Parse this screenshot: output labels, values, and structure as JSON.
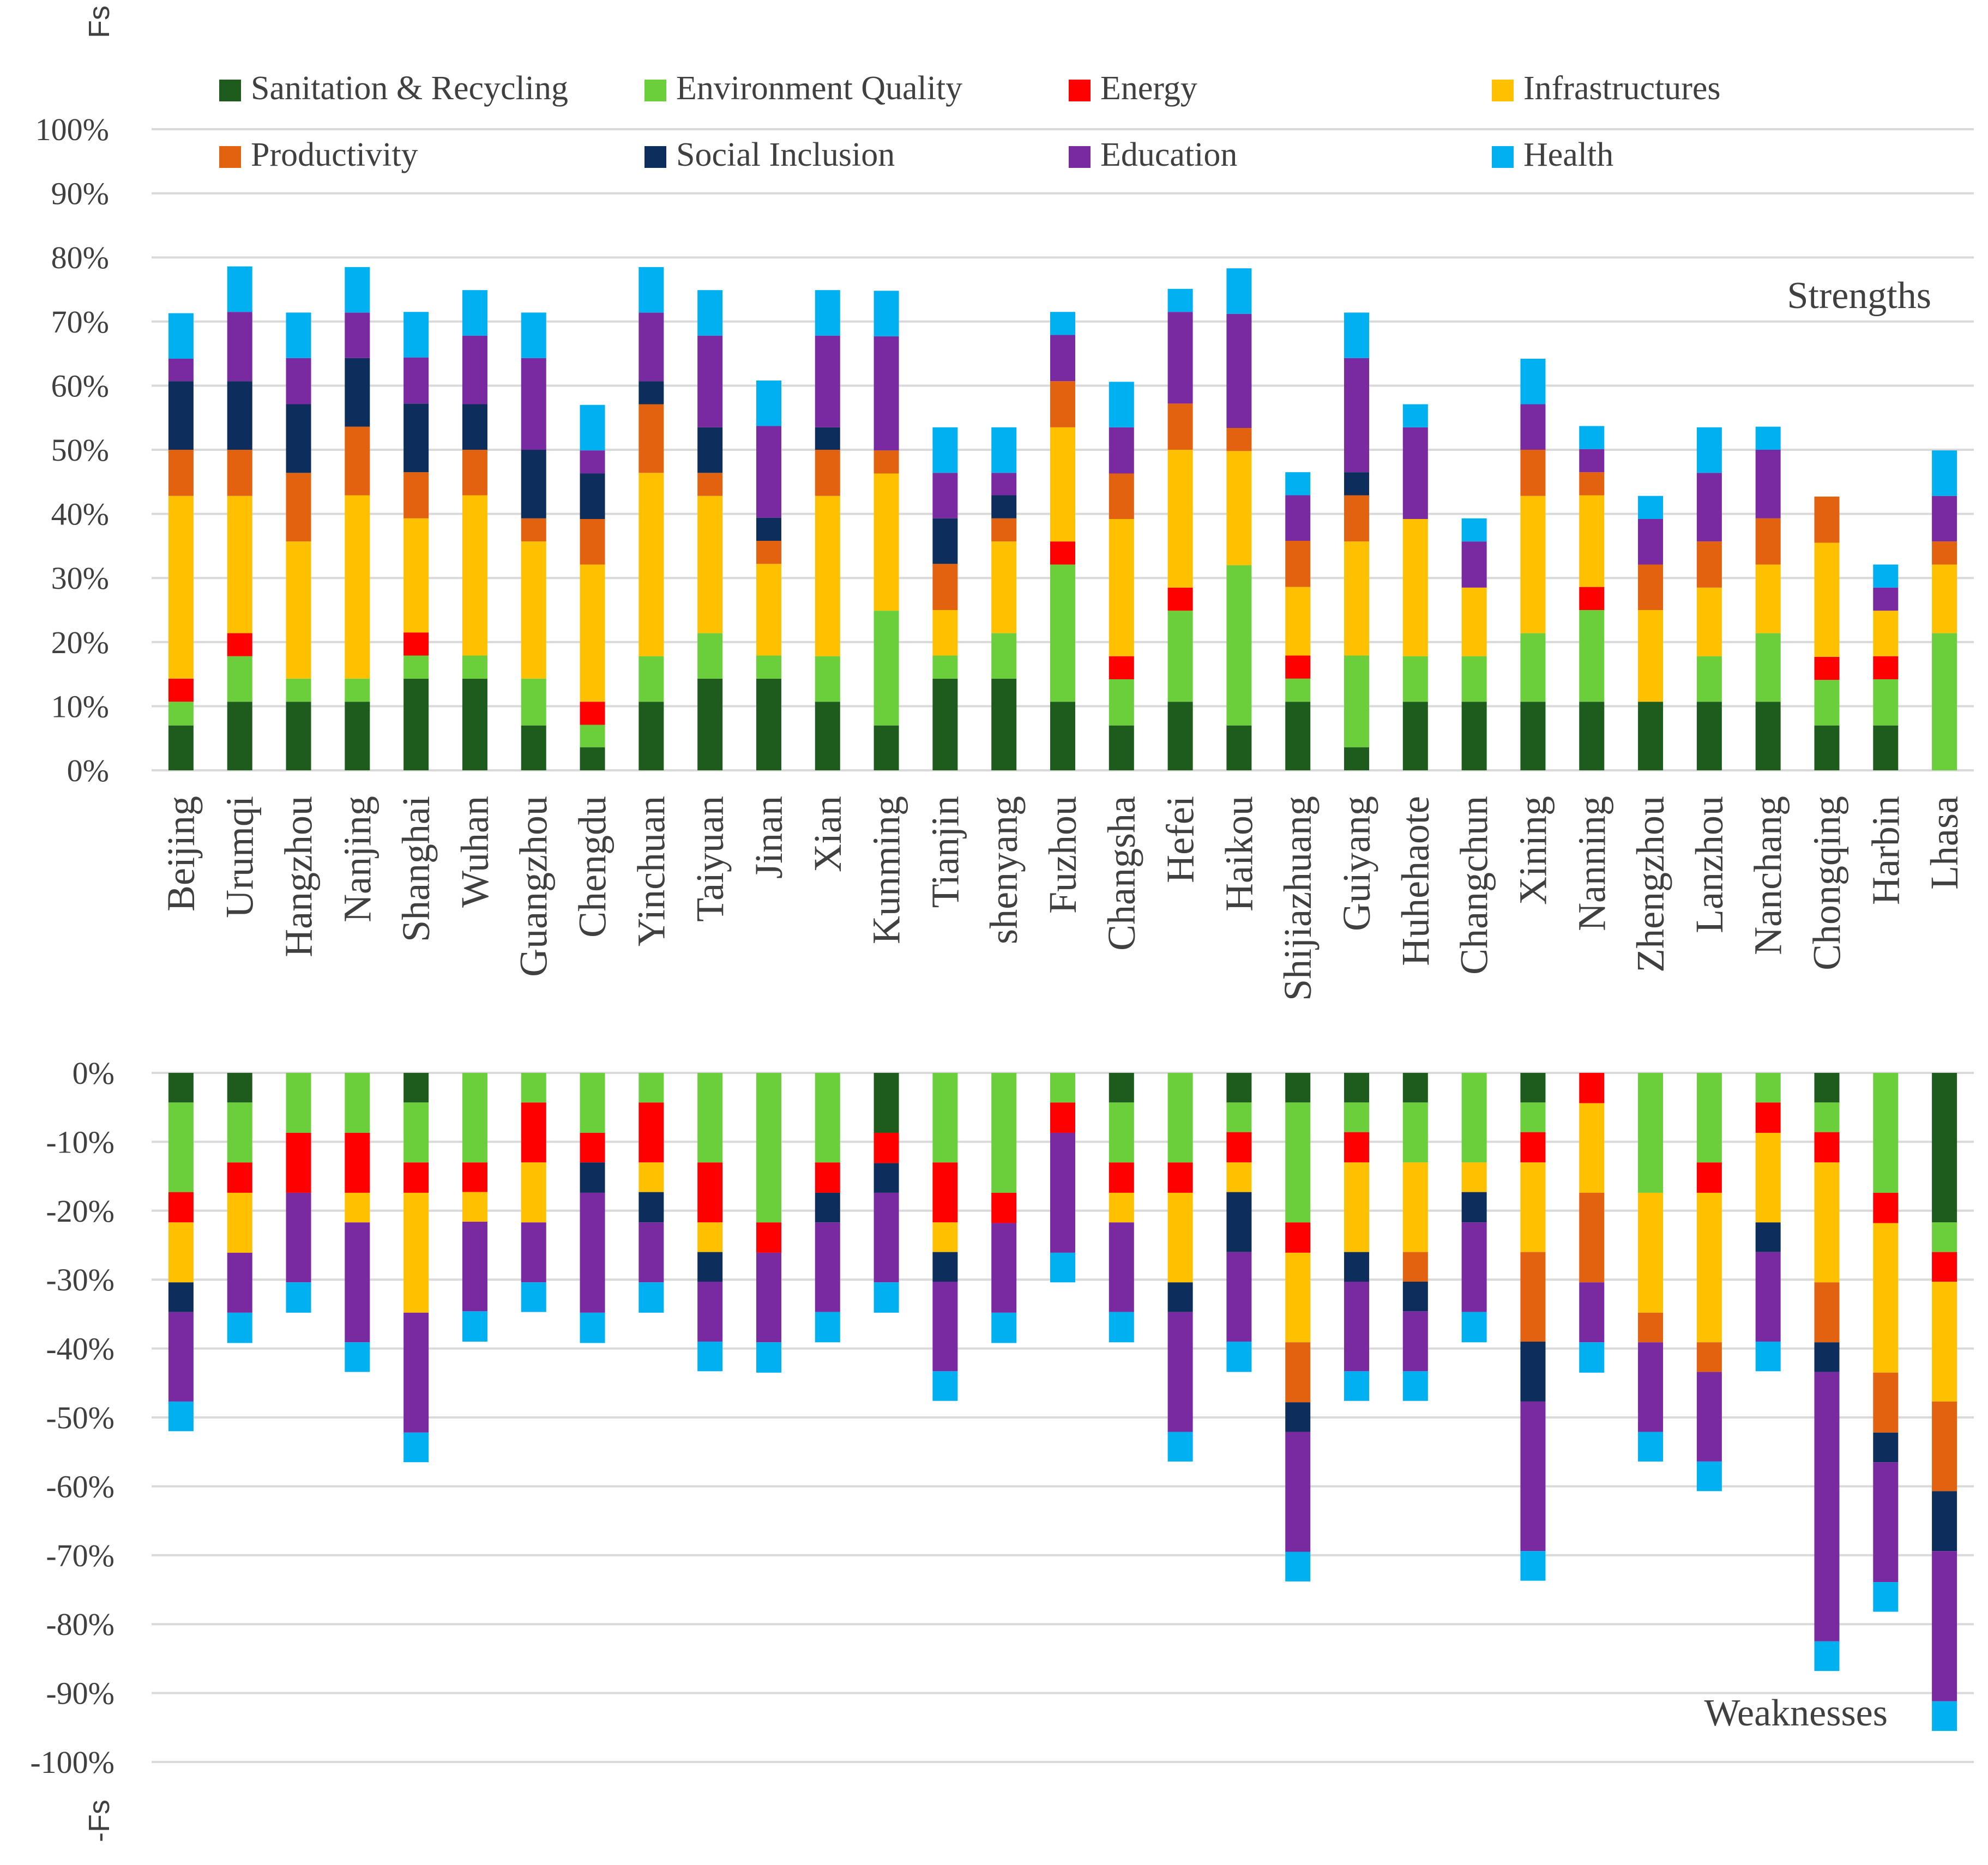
{
  "chart_data": [
    {
      "type": "bar",
      "stacked": true,
      "panel": "top",
      "ylabel": "Fs",
      "ylim": [
        0,
        100
      ],
      "ytick_labels": [
        "0%",
        "10%",
        "20%",
        "30%",
        "40%",
        "50%",
        "60%",
        "70%",
        "80%",
        "90%",
        "100%"
      ],
      "annotation": "Strengths",
      "categories": [
        "Beijing",
        "Urumqi",
        "Hangzhou",
        "Nanjing",
        "Shanghai",
        "Wuhan",
        "Guangzhou",
        "Chengdu",
        "Yinchuan",
        "Taiyuan",
        "Jinan",
        "Xian",
        "Kunming",
        "Tianjin",
        "shenyang",
        "Fuzhou",
        "Changsha",
        "Hefei",
        "Haikou",
        "Shijiazhuang",
        "Guiyang",
        "Huhehaote",
        "Changchun",
        "Xining",
        "Nanning",
        "Zhengzhou",
        "Lanzhou",
        "Nanchang",
        "Chongqing",
        "Harbin",
        "Lhasa"
      ],
      "series": [
        {
          "name": "Sanitation & Recycling",
          "color": "#1e5c1e",
          "values": [
            7,
            10.7,
            10.7,
            10.7,
            14.3,
            14.3,
            7,
            3.6,
            10.7,
            14.3,
            14.3,
            10.7,
            7,
            14.3,
            14.3,
            10.7,
            7,
            10.7,
            7,
            10.7,
            3.6,
            10.7,
            10.7,
            10.7,
            10.7,
            10.7,
            10.7,
            10.7,
            7,
            7,
            0
          ]
        },
        {
          "name": "Environment Quality",
          "color": "#6bcf3c",
          "values": [
            3.7,
            7.1,
            3.6,
            3.6,
            3.6,
            3.6,
            7.3,
            3.5,
            7.1,
            7.1,
            3.6,
            7.1,
            17.9,
            3.6,
            7.1,
            21.4,
            7.2,
            14.2,
            25,
            3.6,
            14.3,
            7.1,
            7.1,
            10.7,
            14.3,
            0,
            7.1,
            10.7,
            7.1,
            7.2,
            21.4
          ]
        },
        {
          "name": "Energy",
          "color": "#ff0000",
          "values": [
            3.6,
            3.6,
            0,
            0,
            3.6,
            0,
            0,
            3.6,
            0,
            0,
            0,
            0,
            0,
            0,
            0,
            3.6,
            3.6,
            3.6,
            0,
            3.6,
            0,
            0,
            0,
            0,
            3.6,
            0,
            0,
            0,
            3.6,
            3.6,
            0
          ]
        },
        {
          "name": "Infrastructures",
          "color": "#ffc000",
          "values": [
            28.5,
            21.4,
            21.4,
            28.6,
            17.8,
            25,
            21.4,
            21.4,
            28.6,
            21.4,
            14.3,
            25,
            21.4,
            7.1,
            14.3,
            17.8,
            21.4,
            21.5,
            17.8,
            10.7,
            17.8,
            21.4,
            10.7,
            21.4,
            14.3,
            14.3,
            10.7,
            10.7,
            17.8,
            7.1,
            10.7
          ]
        },
        {
          "name": "Productivity",
          "color": "#e2620f",
          "values": [
            7.2,
            7.2,
            10.7,
            10.7,
            7.2,
            7.1,
            3.6,
            7.1,
            10.7,
            3.6,
            3.6,
            7.2,
            3.6,
            7.2,
            3.6,
            7.2,
            7.1,
            7.2,
            3.6,
            7.2,
            7.2,
            0,
            0,
            7.2,
            3.6,
            7.1,
            7.2,
            7.2,
            7.2,
            0,
            3.6
          ]
        },
        {
          "name": "Social Inclusion",
          "color": "#0d2e5c",
          "values": [
            10.7,
            10.7,
            10.7,
            10.7,
            10.7,
            7.1,
            10.7,
            7.1,
            3.6,
            7.1,
            3.6,
            3.5,
            0,
            7.1,
            3.6,
            0,
            0,
            0,
            0,
            0,
            3.6,
            0,
            0,
            0,
            0,
            0,
            0,
            0,
            0,
            0,
            0
          ]
        },
        {
          "name": "Education",
          "color": "#7a2aa0",
          "values": [
            3.5,
            10.8,
            7.2,
            7.1,
            7.2,
            10.7,
            14.3,
            3.6,
            10.7,
            14.3,
            14.3,
            14.3,
            17.8,
            7.1,
            3.5,
            7.2,
            7.2,
            14.3,
            17.8,
            7.1,
            17.8,
            14.3,
            7.2,
            7.1,
            3.6,
            7.1,
            10.7,
            10.7,
            0,
            3.6,
            7.1
          ]
        },
        {
          "name": "Health",
          "color": "#00b0f0",
          "values": [
            7.1,
            7.1,
            7.1,
            7.1,
            7.1,
            7.1,
            7.1,
            7.1,
            7.1,
            7.1,
            7.1,
            7.1,
            7.1,
            7.1,
            7.1,
            3.6,
            7.1,
            3.6,
            7.1,
            3.6,
            7.1,
            3.6,
            3.6,
            7.1,
            3.6,
            3.6,
            7.1,
            3.6,
            0,
            3.6,
            7.1
          ]
        }
      ]
    },
    {
      "type": "bar",
      "stacked": true,
      "panel": "bottom",
      "ylabel": "-Fs",
      "ylim": [
        -100,
        0
      ],
      "ytick_labels": [
        "0%",
        "-10%",
        "-20%",
        "-30%",
        "-40%",
        "-50%",
        "-60%",
        "-70%",
        "-80%",
        "-90%",
        "-100%"
      ],
      "annotation": "Weaknesses",
      "categories": [
        "Beijing",
        "Urumqi",
        "Hangzhou",
        "Nanjing",
        "Shanghai",
        "Wuhan",
        "Guangzhou",
        "Chengdu",
        "Yinchuan",
        "Taiyuan",
        "Jinan",
        "Xian",
        "Kunming",
        "Tianjin",
        "shenyang",
        "Fuzhou",
        "Changsha",
        "Hefei",
        "Haikou",
        "Shijiazhuang",
        "Guiyang",
        "Huhehaote",
        "Changchun",
        "Xining",
        "Nanning",
        "Zhengzhou",
        "Lanzhou",
        "Nanchang",
        "Chongqing",
        "Harbin",
        "Lhasa"
      ],
      "series": [
        {
          "name": "Sanitation & Recycling",
          "color": "#1e5c1e",
          "values": [
            -4.3,
            -4.3,
            0,
            0,
            -4.3,
            0,
            0,
            0,
            0,
            0,
            0,
            0,
            -8.7,
            0,
            0,
            0,
            -4.3,
            0,
            -4.3,
            -4.3,
            -4.3,
            -4.3,
            0,
            -4.3,
            0,
            0,
            0,
            0,
            -4.3,
            0,
            -21.7
          ]
        },
        {
          "name": "Environment Quality",
          "color": "#6bcf3c",
          "values": [
            -13,
            -8.7,
            -8.7,
            -8.7,
            -8.7,
            -13,
            -4.3,
            -8.7,
            -4.3,
            -13,
            -21.7,
            -13,
            0,
            -13,
            -17.4,
            -4.3,
            -8.7,
            -13,
            -4.3,
            -17.4,
            -4.3,
            -8.7,
            -13,
            -4.3,
            0,
            -17.4,
            -13,
            -4.3,
            -4.3,
            -17.4,
            -4.3
          ]
        },
        {
          "name": "Energy",
          "color": "#ff0000",
          "values": [
            -4.4,
            -4.4,
            -8.7,
            -8.7,
            -4.4,
            -4.3,
            -8.7,
            -4.3,
            -8.7,
            -8.7,
            -4.4,
            -4.4,
            -4.4,
            -8.7,
            -4.4,
            -4.4,
            -4.4,
            -4.4,
            -4.4,
            -4.4,
            -4.4,
            0,
            0,
            -4.4,
            -4.4,
            0,
            -4.4,
            -4.4,
            -4.4,
            -4.4,
            -4.3
          ]
        },
        {
          "name": "Infrastructures",
          "color": "#ffc000",
          "values": [
            -8.7,
            -8.7,
            0,
            -4.3,
            -17.4,
            -4.3,
            -8.7,
            0,
            -4.3,
            -4.3,
            0,
            0,
            0,
            -4.3,
            0,
            0,
            -4.3,
            -13,
            -4.3,
            -13,
            -13,
            -13,
            -4.3,
            -13,
            -13,
            -17.4,
            -21.7,
            -13,
            -17.4,
            -21.7,
            -17.4
          ]
        },
        {
          "name": "Productivity",
          "color": "#e2620f",
          "values": [
            0,
            0,
            0,
            0,
            0,
            0,
            0,
            0,
            0,
            0,
            0,
            0,
            0,
            0,
            0,
            0,
            0,
            0,
            0,
            -8.7,
            0,
            -4.3,
            0,
            -13,
            -13,
            -4.3,
            -4.3,
            0,
            -8.7,
            -8.7,
            -13
          ]
        },
        {
          "name": "Social Inclusion",
          "color": "#0d2e5c",
          "values": [
            -4.3,
            0,
            0,
            0,
            0,
            0,
            0,
            -4.4,
            -4.4,
            -4.3,
            0,
            -4.3,
            -4.3,
            -4.3,
            0,
            0,
            0,
            -4.3,
            -8.7,
            -4.3,
            -4.3,
            -4.3,
            -4.4,
            -8.7,
            0,
            0,
            0,
            -4.3,
            -4.3,
            -4.3,
            -8.7
          ]
        },
        {
          "name": "Education",
          "color": "#7a2aa0",
          "values": [
            -13,
            -8.7,
            -13,
            -17.4,
            -17.4,
            -13,
            -8.7,
            -17.4,
            -8.7,
            -8.7,
            -13,
            -13,
            -13,
            -13,
            -13,
            -17.4,
            -13,
            -17.4,
            -13,
            -17.4,
            -13,
            -8.7,
            -13,
            -21.7,
            -8.7,
            -13,
            -13,
            -13,
            -39.1,
            -17.4,
            -21.8
          ]
        },
        {
          "name": "Health",
          "color": "#00b0f0",
          "values": [
            -4.3,
            -4.4,
            -4.4,
            -4.3,
            -4.3,
            -4.4,
            -4.3,
            -4.4,
            -4.4,
            -4.3,
            -4.4,
            -4.4,
            -4.4,
            -4.3,
            -4.4,
            -4.3,
            -4.4,
            -4.3,
            -4.4,
            -4.3,
            -4.3,
            -4.3,
            -4.4,
            -4.3,
            -4.4,
            -4.3,
            -4.3,
            -4.3,
            -4.3,
            -4.3,
            -4.3
          ]
        }
      ]
    }
  ]
}
